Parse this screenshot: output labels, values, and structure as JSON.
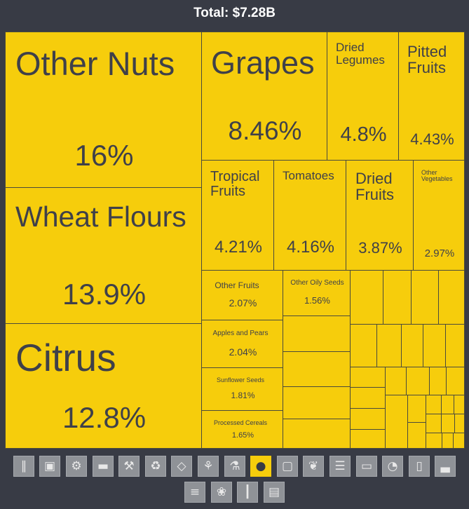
{
  "header": {
    "total": "Total: $7.28B"
  },
  "chart_data": {
    "type": "treemap",
    "total": "Total: $7.28B",
    "items": [
      {
        "label": "Other Nuts",
        "value": "16%"
      },
      {
        "label": "Wheat Flours",
        "value": "13.9%"
      },
      {
        "label": "Citrus",
        "value": "12.8%"
      },
      {
        "label": "Grapes",
        "value": "8.46%"
      },
      {
        "label": "Dried Legumes",
        "value": "4.8%"
      },
      {
        "label": "Pitted Fruits",
        "value": "4.43%"
      },
      {
        "label": "Tropical Fruits",
        "value": "4.21%"
      },
      {
        "label": "Tomatoes",
        "value": "4.16%"
      },
      {
        "label": "Dried Fruits",
        "value": "3.87%"
      },
      {
        "label": "Other Vegetables",
        "value": "2.97%"
      },
      {
        "label": "Other Fruits",
        "value": "2.07%"
      },
      {
        "label": "Other Oily Seeds",
        "value": "1.56%"
      },
      {
        "label": "Apples and Pears",
        "value": "2.04%"
      },
      {
        "label": "Sunflower Seeds",
        "value": "1.81%"
      },
      {
        "label": "Processed Cereals",
        "value": "1.65%"
      }
    ],
    "tile_color": "#f6cd0c",
    "background": "#383b45"
  },
  "toolbar": {
    "icons": [
      "road-icon",
      "tshirt-icon",
      "gear-icon",
      "anvil-icon",
      "hammer-icon",
      "recycle-icon",
      "diamond-icon",
      "wheat-icon",
      "flask-icon",
      "fruit-icon",
      "box-icon",
      "leaf-icon",
      "scroll-icon",
      "animal-icon",
      "gauge-icon",
      "battery-icon",
      "shoe-icon",
      "lumber-icon",
      "hide-icon",
      "bullets-icon",
      "easel-icon"
    ],
    "active_icon": "fruit-icon"
  }
}
